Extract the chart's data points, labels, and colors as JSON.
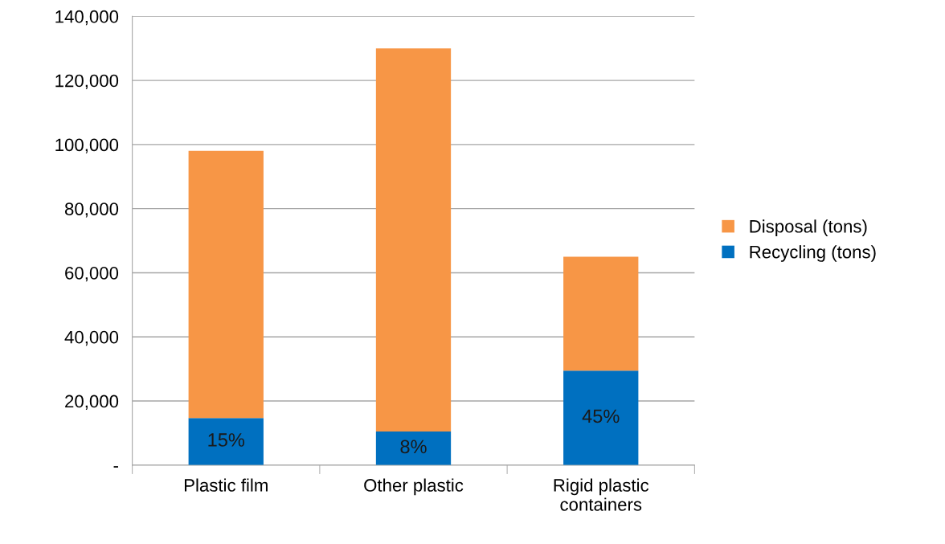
{
  "chart_data": {
    "type": "bar",
    "stacked": true,
    "categories": [
      "Plastic film",
      "Other plastic",
      "Rigid plastic\ncontainers"
    ],
    "series": [
      {
        "name": "Recycling (tons)",
        "color": "#0070c0",
        "values": [
          14700,
          10500,
          29500
        ]
      },
      {
        "name": "Disposal (tons)",
        "color": "#f79646",
        "values": [
          83300,
          119500,
          35500
        ]
      }
    ],
    "ylim": [
      0,
      140000
    ],
    "yticks": [
      {
        "value": 0,
        "label": "-"
      },
      {
        "value": 20000,
        "label": "20,000"
      },
      {
        "value": 40000,
        "label": "40,000"
      },
      {
        "value": 60000,
        "label": "60,000"
      },
      {
        "value": 80000,
        "label": "80,000"
      },
      {
        "value": 100000,
        "label": "100,000"
      },
      {
        "value": 120000,
        "label": "120,000"
      },
      {
        "value": 140000,
        "label": "140,000"
      }
    ],
    "annotations": [
      "15%",
      "8%",
      "45%"
    ],
    "grid": "y",
    "legend": "right"
  }
}
